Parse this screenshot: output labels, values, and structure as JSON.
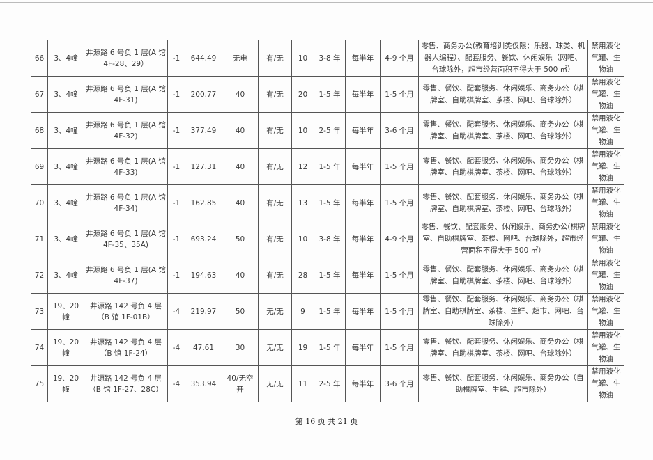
{
  "rows": [
    {
      "no": "66",
      "building": "3、4幢",
      "address": "井源路 6 号负 1 层(A 馆 4F-28、29）",
      "floor": "-1",
      "area": "644.49",
      "power": "无电",
      "water": "有/无",
      "count": "10",
      "term": "3-8 年",
      "payment": "每半年",
      "free": "4-9 个月",
      "use": "零售、商务办公(教育培训类仅限：乐器、球类、机器人编程）、配套服务、餐饮、休闲娱乐（网吧、台球除外，超市经营面积不得大于 500 ㎡）",
      "ban": "禁用液化气罐、生物油"
    },
    {
      "no": "67",
      "building": "3、4幢",
      "address": "井源路 6 号负 1 层(A 馆 4F-31)",
      "floor": "-1",
      "area": "200.77",
      "power": "40",
      "water": "有/无",
      "count": "20",
      "term": "1-5 年",
      "payment": "每半年",
      "free": "1-5 个月",
      "use": "零售、餐饮、配套服务、休闲娱乐、商务办公（棋牌室、自助棋牌室、茶楼、网吧、台球除外）",
      "ban": "禁用液化气罐、生物油"
    },
    {
      "no": "68",
      "building": "3、4幢",
      "address": "井源路 6 号负 1 层(A 馆 4F-32)",
      "floor": "-1",
      "area": "377.49",
      "power": "40",
      "water": "有/无",
      "count": "10",
      "term": "2-5 年",
      "payment": "每半年",
      "free": "3-6 个月",
      "use": "零售、餐饮、配套服务、休闲娱乐、商务办公（棋牌室、自助棋牌室、茶楼、网吧、台球除外）",
      "ban": "禁用液化气罐、生物油"
    },
    {
      "no": "69",
      "building": "3、4幢",
      "address": "井源路 6 号负 1 层(A 馆 4F-33)",
      "floor": "-1",
      "area": "127.31",
      "power": "40",
      "water": "有/无",
      "count": "12",
      "term": "1-5 年",
      "payment": "每半年",
      "free": "1-5 个月",
      "use": "零售、餐饮、配套服务、休闲娱乐、商务办公（棋牌室、自助棋牌室、茶楼、网吧、台球除外）",
      "ban": "禁用液化气罐、生物油"
    },
    {
      "no": "70",
      "building": "3、4幢",
      "address": "井源路 6 号负 1 层(A 馆 4F-34)",
      "floor": "-1",
      "area": "162.85",
      "power": "40",
      "water": "有/无",
      "count": "13",
      "term": "1-5 年",
      "payment": "每半年",
      "free": "1-5 个月",
      "use": "零售、餐饮、配套服务、休闲娱乐、商务办公（棋牌室、自助棋牌室、茶楼、网吧、台球除外）",
      "ban": "禁用液化气罐、生物油"
    },
    {
      "no": "71",
      "building": "3、4幢",
      "address": "井源路 6 号负 1 层(A 馆 4F-35、35A)",
      "floor": "-1",
      "area": "693.24",
      "power": "50",
      "water": "有/无",
      "count": "10",
      "term": "3-8 年",
      "payment": "每半年",
      "free": "4-9 个月",
      "use": "零售、餐饮、配套服务、休闲娱乐、商务办公(棋牌室、自助棋牌室、茶楼、网吧、台球除外，超市经营面积不得大于 500 ㎡）",
      "ban": "禁用液化气罐、生物油"
    },
    {
      "no": "72",
      "building": "3、4幢",
      "address": "井源路 6 号负 1 层(A 馆 4F-37)",
      "floor": "-1",
      "area": "194.63",
      "power": "40",
      "water": "有/无",
      "count": "28",
      "term": "1-5 年",
      "payment": "每半年",
      "free": "1-5 个月",
      "use": "零售、餐饮、配套服务、休闲娱乐、商务办公（棋牌室、自助棋牌室、茶楼、网吧、台球除外）",
      "ban": "禁用液化气罐、生物油"
    },
    {
      "no": "73",
      "building": "19、20 幢",
      "address": "井源路 142 号负 4 层（B 馆 1F-01B）",
      "floor": "-4",
      "area": "219.97",
      "power": "50",
      "water": "无/无",
      "count": "9",
      "term": "1-5 年",
      "payment": "每半年",
      "free": "1-5 个月",
      "use": "零售、餐饮、配套服务、休闲娱乐、商务办公（棋牌室、自助棋牌室、茶楼、生鲜、超市、网吧、台球除外）",
      "ban": "禁用液化气罐、生物油"
    },
    {
      "no": "74",
      "building": "19、20 幢",
      "address": "井源路 142 号负 4 层（B 馆 1F-24）",
      "floor": "-4",
      "area": "47.61",
      "power": "30",
      "water": "无/无",
      "count": "19",
      "term": "1-5 年",
      "payment": "每半年",
      "free": "1-5 个月",
      "use": "零售、餐饮、配套服务、休闲娱乐、商务办公（棋牌室、自助棋牌室、茶楼、网吧、台球除外）",
      "ban": "禁用液化气罐、生物油"
    },
    {
      "no": "75",
      "building": "19、20 幢",
      "address": "井源路 142 号负 4 层（B 馆 1F-27、28C）",
      "floor": "-4",
      "area": "353.94",
      "power": "40/无空开",
      "water": "无/无",
      "count": "11",
      "term": "2-5 年",
      "payment": "每半年",
      "free": "3-6 个月",
      "use": "零售、餐饮、配套服务、休闲娱乐、商务办公（自助棋牌室、生鲜、超市除外）",
      "ban": "禁用液化气罐、生物油"
    }
  ],
  "footer": "第 16 页 共 21 页"
}
